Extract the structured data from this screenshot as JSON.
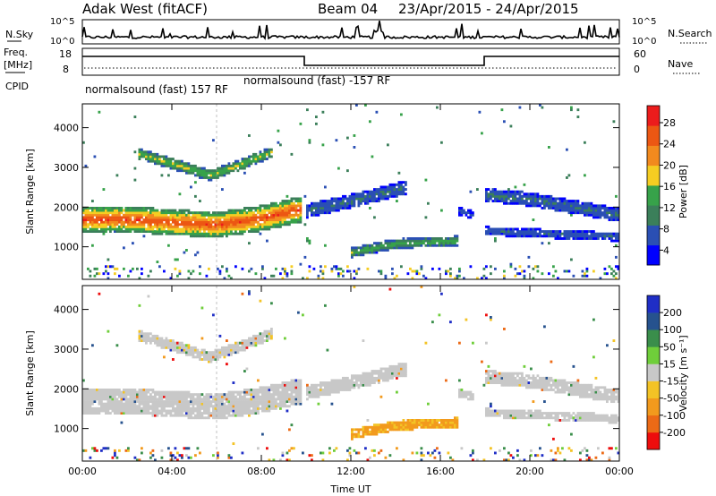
{
  "header": {
    "station": "Adak West (fitACF)",
    "beam": "Beam 04",
    "date_range": "23/Apr/2015 - 24/Apr/2015"
  },
  "noise_panel": {
    "left_label": "N.Sky",
    "right_label": "N.Search",
    "left_ticks": [
      "10^5",
      "10^0"
    ],
    "right_ticks": [
      "10^5",
      "10^0"
    ]
  },
  "freq_panel": {
    "left_label_1": "Freq.",
    "left_label_2": "[MHz]",
    "right_label": "Nave",
    "left_ticks": [
      "18",
      "8"
    ],
    "right_ticks": [
      "60",
      "0"
    ],
    "cpid_label": "CPID",
    "cpid_1": "normalsound (fast) 157 RF",
    "cpid_2": "normalsound (fast) -157 RF"
  },
  "colors": {
    "power": [
      "#0000ff",
      "#2a4fb4",
      "#3b7f5a",
      "#37a24a",
      "#f5cd22",
      "#f28a1e",
      "#ec5713",
      "#ec1c1c"
    ],
    "velocity": [
      "#ee0d0d",
      "#ec6a16",
      "#f29a1d",
      "#f3c325",
      "#c8c8c8",
      "#6fce3a",
      "#3a8e4b",
      "#26528e",
      "#1f2ec6"
    ],
    "ground_grey": "#c8c8c8"
  },
  "chart_data": [
    {
      "type": "heatmap",
      "name": "power",
      "ylabel": "Slant Range [km]",
      "xlabel": "",
      "xlim": [
        0,
        24
      ],
      "ylim": [
        180,
        4600
      ],
      "yticks": [
        "1000",
        "2000",
        "3000",
        "4000"
      ],
      "xticks": [
        "00:00",
        "04:00",
        "08:00",
        "12:00",
        "16:00",
        "20:00",
        "00:00"
      ],
      "colorbar_label": "Power [dB]",
      "colorbar_ticks": [
        "28",
        "24",
        "20",
        "16",
        "12",
        "8",
        "4"
      ],
      "colorbar_range": [
        0,
        30
      ],
      "bands": [
        {
          "t_start": 0,
          "t_end": 9.8,
          "range_at": [
            [
              0,
              1700
            ],
            [
              2,
              1700
            ],
            [
              4,
              1620
            ],
            [
              6,
              1550
            ],
            [
              8,
              1720
            ],
            [
              9.8,
              1950
            ]
          ],
          "width_km": 650,
          "peak_db": 26
        },
        {
          "t_start": 10,
          "t_end": 14.5,
          "range_at": [
            [
              10,
              1900
            ],
            [
              12,
              2150
            ],
            [
              14.5,
              2500
            ]
          ],
          "width_km": 350,
          "peak_db": 8
        },
        {
          "t_start": 12,
          "t_end": 16.8,
          "range_at": [
            [
              12,
              850
            ],
            [
              14,
              1080
            ],
            [
              16.8,
              1150
            ]
          ],
          "width_km": 250,
          "peak_db": 14
        },
        {
          "t_start": 16.8,
          "t_end": 17.5,
          "range_at": [
            [
              16.8,
              1900
            ],
            [
              17.5,
              1800
            ]
          ],
          "width_km": 200,
          "peak_db": 6
        },
        {
          "t_start": 18,
          "t_end": 24,
          "range_at": [
            [
              18,
              2300
            ],
            [
              20,
              2200
            ],
            [
              22,
              2000
            ],
            [
              24,
              1800
            ]
          ],
          "width_km": 350,
          "peak_db": 8
        },
        {
          "t_start": 18,
          "t_end": 24,
          "range_at": [
            [
              18,
              1400
            ],
            [
              24,
              1250
            ]
          ],
          "width_km": 220,
          "peak_db": 7
        },
        {
          "t_start": 2.5,
          "t_end": 8.5,
          "range_at": [
            [
              2.5,
              3350
            ],
            [
              4,
              3100
            ],
            [
              5.7,
              2800
            ],
            [
              7,
              3050
            ],
            [
              8.5,
              3400
            ]
          ],
          "width_km": 280,
          "peak_db": 16
        }
      ]
    },
    {
      "type": "heatmap",
      "name": "velocity",
      "ylabel": "Slant Range [km]",
      "xlabel": "Time UT",
      "xlim": [
        0,
        24
      ],
      "ylim": [
        180,
        4600
      ],
      "yticks": [
        "1000",
        "2000",
        "3000",
        "4000"
      ],
      "xticks": [
        "00:00",
        "04:00",
        "08:00",
        "12:00",
        "16:00",
        "20:00",
        "00:00"
      ],
      "colorbar_label": "Velocity [m s⁻¹]",
      "colorbar_ticks": [
        "200",
        "100",
        "50",
        "15",
        "-15",
        "-50",
        "-100",
        "-200"
      ],
      "colorbar_range": [
        -250,
        250
      ]
    }
  ]
}
